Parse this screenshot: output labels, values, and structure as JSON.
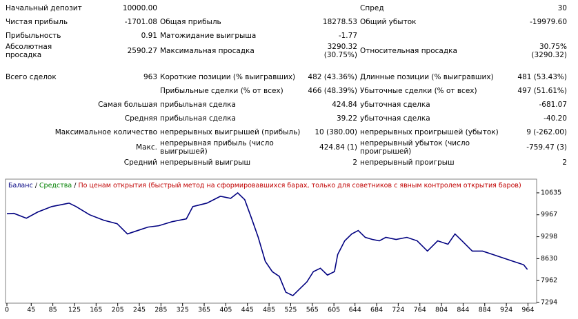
{
  "report": {
    "rows": [
      [
        "Начальный депозит",
        "10000.00",
        null,
        null,
        "Спред",
        "30"
      ],
      [
        "Чистая прибыль",
        "-1701.08",
        "Общая прибыль",
        "18278.53",
        "Общий убыток",
        "-19979.60"
      ],
      [
        "Прибыльность",
        "0.91",
        "Матожидание выигрыша",
        "-1.77",
        null,
        null
      ],
      [
        "Абсолютная просадка",
        "2590.27",
        "Максимальная просадка",
        "3290.32 (30.75%)",
        "Относительная просадка",
        "30.75% (3290.32)"
      ],
      [
        "Всего сделок",
        "963",
        "Короткие позиции (% выигравших)",
        "482 (43.36%)",
        "Длинные позиции (% выигравших)",
        "481 (53.43%)"
      ],
      [
        null,
        null,
        "Прибыльные сделки (% от всех)",
        "466 (48.39%)",
        "Убыточные сделки (% от всех)",
        "497 (51.61%)"
      ]
    ],
    "grouped_rows": [
      [
        "Самая большая",
        "прибыльная сделка",
        "424.84",
        "убыточная сделка",
        "-681.07"
      ],
      [
        "Средняя",
        "прибыльная сделка",
        "39.22",
        "убыточная сделка",
        "-40.20"
      ],
      [
        "Максимальное количество",
        "непрерывных выигрышей (прибыль)",
        "10 (380.00)",
        "непрерывных проигрышей (убыток)",
        "9 (-262.00)"
      ],
      [
        "Макс.",
        "непрерывная прибыль (число выигрышей)",
        "424.84 (1)",
        "непрерывный убыток (число проигрышей)",
        "-759.47 (3)"
      ],
      [
        "Средний",
        "непрерывный выигрыш",
        "2",
        "непрерывный проигрыш",
        "2"
      ]
    ]
  },
  "chart_data": {
    "type": "line",
    "legend": [
      {
        "text": "Баланс",
        "color": "#000080"
      },
      {
        "text": " / ",
        "color": "#000000"
      },
      {
        "text": "Средства",
        "color": "#008000"
      },
      {
        "text": " / ",
        "color": "#000000"
      },
      {
        "text": "По ценам открытия (быстрый метод на сформировавшихся барах, только для советников с явным контролем открытия баров)",
        "color": "#c00000"
      }
    ],
    "x": [
      0,
      13,
      36,
      57,
      83,
      115,
      128,
      153,
      179,
      204,
      223,
      242,
      261,
      281,
      306,
      332,
      344,
      370,
      395,
      414,
      427,
      440,
      453,
      465,
      478,
      491,
      504,
      516,
      529,
      542,
      555,
      567,
      580,
      593,
      606,
      612,
      625,
      638,
      650,
      663,
      676,
      689,
      701,
      720,
      740,
      759,
      778,
      797,
      816,
      829,
      842,
      861,
      880,
      899,
      918,
      937,
      956,
      963
    ],
    "series": [
      {
        "name": "Баланс",
        "color": "#000080",
        "values": [
          10000,
          10009,
          9862,
          10050,
          10217,
          10322,
          10217,
          9967,
          9800,
          9695,
          9382,
          9487,
          9591,
          9633,
          9758,
          9842,
          10217,
          10322,
          10531,
          10468,
          10635,
          10426,
          9842,
          9278,
          8547,
          8234,
          8088,
          7607,
          7503,
          7712,
          7921,
          8234,
          8338,
          8129,
          8234,
          8756,
          9173,
          9382,
          9487,
          9278,
          9215,
          9173,
          9278,
          9215,
          9278,
          9173,
          8860,
          9173,
          9069,
          9382,
          9173,
          8860,
          8860,
          8756,
          8651,
          8547,
          8443,
          8299
        ]
      }
    ],
    "xlim": [
      0,
      980
    ],
    "ylim": [
      7273,
      11011
    ],
    "xticks": [
      0,
      45,
      85,
      125,
      165,
      205,
      245,
      285,
      325,
      365,
      405,
      445,
      485,
      525,
      565,
      605,
      644,
      684,
      724,
      764,
      804,
      844,
      884,
      924,
      964
    ],
    "yticks": [
      7294,
      7962,
      8630,
      9298,
      9967,
      10635
    ]
  }
}
